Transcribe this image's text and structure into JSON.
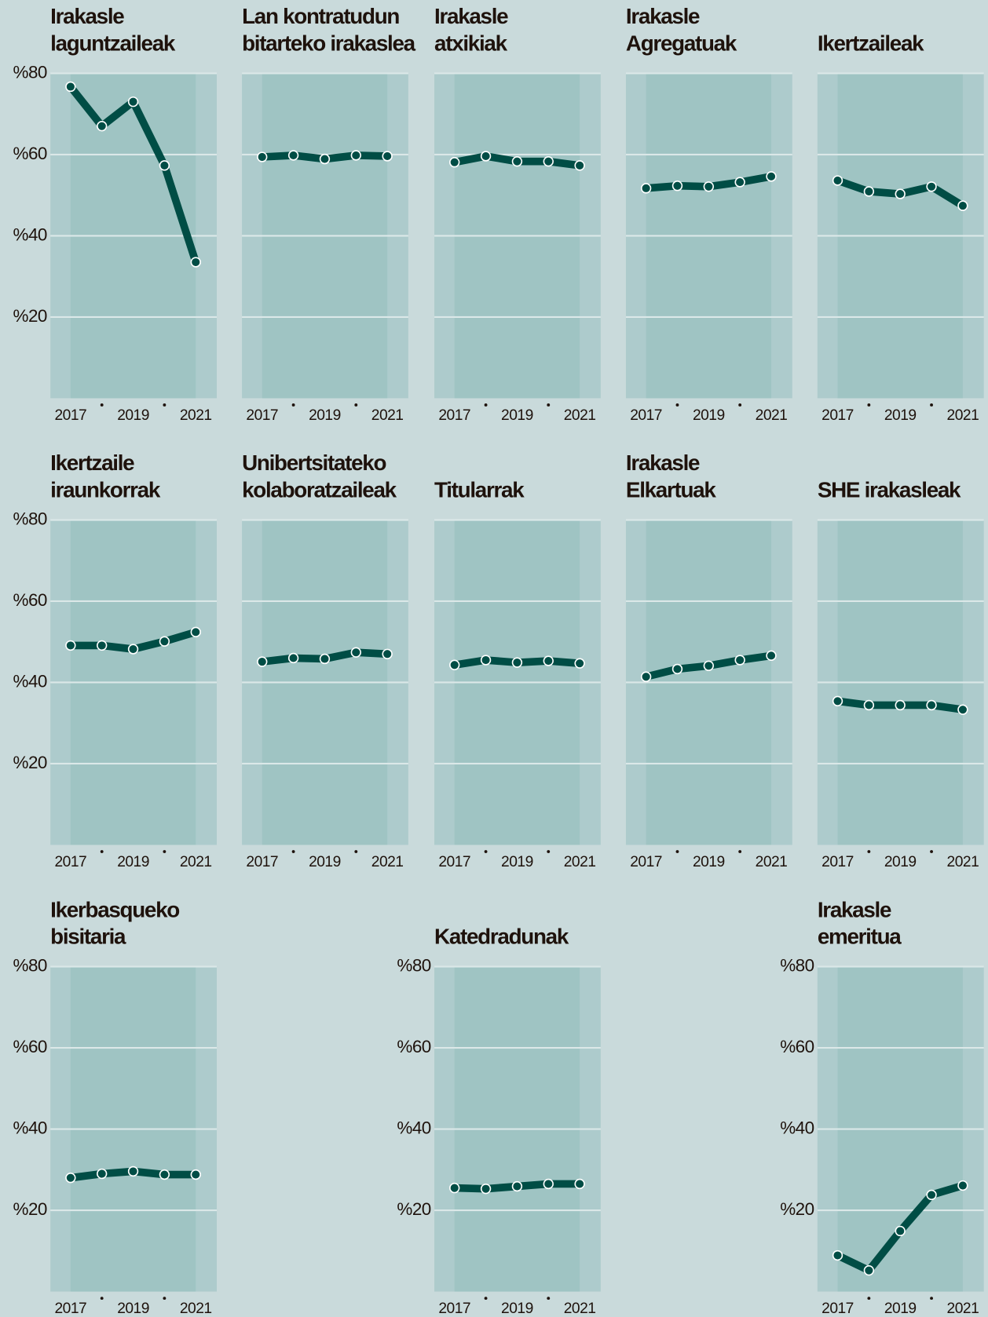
{
  "chart_data": [
    {
      "type": "line",
      "title": [
        "Irakasle",
        "laguntzaileak"
      ],
      "categories": [
        "2017",
        null,
        "2019",
        null,
        "2021"
      ],
      "values": [
        76.7,
        67.0,
        73.0,
        57.3,
        33.5
      ],
      "color": "#004d45",
      "ylim": [
        0,
        80
      ],
      "yticks": [
        {
          "value": 20,
          "label": "%20"
        },
        {
          "value": 40,
          "label": "%40"
        },
        {
          "value": 60,
          "label": "%60"
        },
        {
          "value": 80,
          "label": "%80"
        }
      ]
    },
    {
      "type": "line",
      "title": [
        "Lan kontratudun",
        "bitarteko irakaslea"
      ],
      "categories": [
        "2017",
        null,
        "2019",
        null,
        "2021"
      ],
      "values": [
        59.4,
        59.8,
        58.9,
        59.8,
        59.6
      ],
      "color": "#004d45",
      "ylim": [
        0,
        80
      ],
      "yticks": [
        20,
        40,
        60,
        80
      ]
    },
    {
      "type": "line",
      "title": [
        "Irakasle",
        "atxikiak"
      ],
      "categories": [
        "2017",
        null,
        "2019",
        null,
        "2021"
      ],
      "values": [
        58.1,
        59.6,
        58.3,
        58.3,
        57.3
      ],
      "color": "#004d45",
      "ylim": [
        0,
        80
      ],
      "yticks": [
        20,
        40,
        60,
        80
      ]
    },
    {
      "type": "line",
      "title": [
        "Irakasle",
        "Agregatuak"
      ],
      "categories": [
        "2017",
        null,
        "2019",
        null,
        "2021"
      ],
      "values": [
        51.7,
        52.3,
        52.1,
        53.2,
        54.6
      ],
      "color": "#004d45",
      "ylim": [
        0,
        80
      ],
      "yticks": [
        20,
        40,
        60,
        80
      ]
    },
    {
      "type": "line",
      "title": [
        "Ikertzaileak"
      ],
      "categories": [
        "2017",
        null,
        "2019",
        null,
        "2021"
      ],
      "values": [
        53.6,
        50.9,
        50.3,
        52.1,
        47.4
      ],
      "color": "#004d45",
      "ylim": [
        0,
        80
      ],
      "yticks": [
        20,
        40,
        60,
        80
      ]
    },
    {
      "type": "line",
      "title": [
        "Ikertzaile",
        "iraunkorrak"
      ],
      "categories": [
        "2017",
        null,
        "2019",
        null,
        "2021"
      ],
      "values": [
        49.1,
        49.1,
        48.2,
        50.1,
        52.4
      ],
      "color": "#004d45",
      "ylim": [
        0,
        80
      ],
      "yticks": [
        {
          "value": 20,
          "label": "%20"
        },
        {
          "value": 40,
          "label": "%40"
        },
        {
          "value": 60,
          "label": "%60"
        },
        {
          "value": 80,
          "label": "%80"
        }
      ]
    },
    {
      "type": "line",
      "title": [
        "Unibertsitateko",
        "kolaboratzaileak"
      ],
      "categories": [
        "2017",
        null,
        "2019",
        null,
        "2021"
      ],
      "values": [
        45.1,
        46.0,
        45.8,
        47.4,
        47.0
      ],
      "color": "#004d45",
      "ylim": [
        0,
        80
      ],
      "yticks": [
        20,
        40,
        60,
        80
      ]
    },
    {
      "type": "line",
      "title": [
        "Titularrak"
      ],
      "categories": [
        "2017",
        null,
        "2019",
        null,
        "2021"
      ],
      "values": [
        44.3,
        45.5,
        44.9,
        45.3,
        44.7
      ],
      "color": "#004d45",
      "ylim": [
        0,
        80
      ],
      "yticks": [
        20,
        40,
        60,
        80
      ]
    },
    {
      "type": "line",
      "title": [
        "Irakasle",
        "Elkartuak"
      ],
      "categories": [
        "2017",
        null,
        "2019",
        null,
        "2021"
      ],
      "values": [
        41.4,
        43.3,
        44.1,
        45.5,
        46.6
      ],
      "color": "#004d45",
      "ylim": [
        0,
        80
      ],
      "yticks": [
        20,
        40,
        60,
        80
      ]
    },
    {
      "type": "line",
      "title": [
        "SHE irakasleak"
      ],
      "categories": [
        "2017",
        null,
        "2019",
        null,
        "2021"
      ],
      "values": [
        35.4,
        34.4,
        34.4,
        34.4,
        33.3
      ],
      "color": "#004d45",
      "ylim": [
        0,
        80
      ],
      "yticks": [
        20,
        40,
        60,
        80
      ]
    },
    {
      "type": "line",
      "title": [
        "Ikerbasqueko",
        "bisitaria"
      ],
      "categories": [
        "2017",
        null,
        "2019",
        null,
        "2021"
      ],
      "values": [
        28.0,
        29.0,
        29.6,
        28.8,
        28.8
      ],
      "color": "#004d45",
      "ylim": [
        0,
        80
      ],
      "yticks": [
        {
          "value": 20,
          "label": "%20"
        },
        {
          "value": 40,
          "label": "%40"
        },
        {
          "value": 60,
          "label": "%60"
        },
        {
          "value": 80,
          "label": "%80"
        }
      ]
    },
    {
      "type": "line",
      "title": [
        "Katedradunak"
      ],
      "categories": [
        "2017",
        null,
        "2019",
        null,
        "2021"
      ],
      "values": [
        25.5,
        25.3,
        25.9,
        26.5,
        26.5
      ],
      "color": "#004d45",
      "ylim": [
        0,
        80
      ],
      "yticks": [
        {
          "value": 20,
          "label": "%20"
        },
        {
          "value": 40,
          "label": "%40"
        },
        {
          "value": 60,
          "label": "%60"
        },
        {
          "value": 80,
          "label": "%80"
        }
      ]
    },
    {
      "type": "line",
      "title": [
        "Irakasle",
        "emeritua"
      ],
      "categories": [
        "2017",
        null,
        "2019",
        null,
        "2021"
      ],
      "values": [
        8.9,
        5.2,
        14.9,
        23.8,
        26.1
      ],
      "color": "#004d45",
      "ylim": [
        0,
        80
      ],
      "yticks": [
        {
          "value": 20,
          "label": "%20"
        },
        {
          "value": 40,
          "label": "%40"
        },
        {
          "value": 60,
          "label": "%60"
        },
        {
          "value": 80,
          "label": "%80"
        }
      ]
    }
  ]
}
